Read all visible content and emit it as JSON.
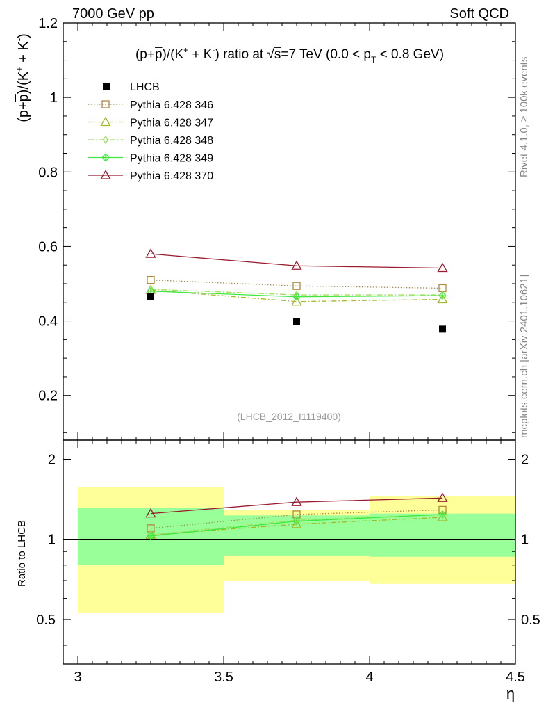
{
  "header": {
    "left": "7000 GeV pp",
    "right": "Soft QCD"
  },
  "side_labels": {
    "rivet": "Rivet 4.1.0, ≥ 100k events",
    "mcplots": "mcplots.cern.ch [arXiv:2401.10621]"
  },
  "watermark": "(LHCB_2012_I1119400)",
  "chart_data": {
    "type": "line",
    "title": "(p+p̄)/(K⁺ + K⁻) ratio at √s=7 TeV (0.0 < pT < 0.8 GeV)",
    "title_parts": {
      "pre": "(p+",
      "pbar": "p",
      "mid1": ")/(K",
      "plus": "+",
      "mid2": " + K",
      "minus": "-",
      "mid3": ") ratio at ",
      "sqrt": "√",
      "s": "s",
      "mid4": "=7 TeV (0.0 < p",
      "T": "T",
      "post": " < 0.8 GeV)"
    },
    "ylabel": "(p+p̄)/(K⁺ + K⁻)",
    "ylabel_parts": {
      "pre": "(p+",
      "pbar": "p",
      "mid1": ")/(K",
      "plus": "+",
      "mid2": " + K",
      "minus": "-",
      "post": ")"
    },
    "xlabel": "η",
    "ratio_ylabel": "Ratio to LHCB",
    "xlim": [
      2.95,
      4.5
    ],
    "ylim": [
      0.08,
      1.2
    ],
    "ratio_ylim": [
      0.34,
      2.36
    ],
    "x_ticks": [
      3,
      3.5,
      4,
      4.5
    ],
    "x_tick_labels": [
      "3",
      "3.5",
      "4",
      "4.5"
    ],
    "y_ticks": [
      0.2,
      0.4,
      0.6,
      0.8,
      1,
      1.2
    ],
    "y_tick_labels": [
      "0.2",
      "0.4",
      "0.6",
      "0.8",
      "1",
      "1.2"
    ],
    "ratio_ticks": [
      0.5,
      1,
      2
    ],
    "ratio_tick_labels": [
      "0.5",
      "1",
      "2"
    ],
    "x": [
      3.25,
      3.75,
      4.25
    ],
    "bins": [
      [
        3.0,
        3.5
      ],
      [
        3.5,
        4.0
      ],
      [
        4.0,
        4.5
      ]
    ],
    "data": {
      "name": "LHCB",
      "values": [
        0.465,
        0.398,
        0.378
      ],
      "band_inner": [
        [
          0.8,
          1.31
        ],
        [
          0.87,
          1.23
        ],
        [
          0.86,
          1.25
        ]
      ],
      "band_outer": [
        [
          0.53,
          1.57
        ],
        [
          0.7,
          1.29
        ],
        [
          0.68,
          1.45
        ]
      ]
    },
    "series": [
      {
        "name": "Pythia 6.428 346",
        "color": "#b08a3e",
        "marker": "square",
        "dash": "1.5,2.5",
        "values": [
          0.51,
          0.494,
          0.488
        ],
        "ratio": [
          1.1,
          1.24,
          1.29
        ]
      },
      {
        "name": "Pythia 6.428 347",
        "color": "#a2b82a",
        "marker": "triangle",
        "dash": "7,3,1.5,3",
        "values": [
          0.483,
          0.452,
          0.458
        ],
        "ratio": [
          1.04,
          1.14,
          1.21
        ]
      },
      {
        "name": "Pythia 6.428 348",
        "color": "#9ee05a",
        "marker": "diamond",
        "dash": "8,3,1.5,3",
        "values": [
          0.485,
          0.47,
          0.47
        ],
        "ratio": [
          1.04,
          1.18,
          1.24
        ]
      },
      {
        "name": "Pythia 6.428 349",
        "color": "#3ee83e",
        "marker": "circleplus",
        "dash": "",
        "values": [
          0.48,
          0.465,
          0.468
        ],
        "ratio": [
          1.03,
          1.17,
          1.24
        ]
      },
      {
        "name": "Pythia 6.428 370",
        "color": "#9a1a2e",
        "marker": "triangle",
        "dash": "",
        "values": [
          0.58,
          0.548,
          0.542
        ],
        "ratio": [
          1.25,
          1.38,
          1.43
        ]
      }
    ],
    "legend_position": "top-left"
  }
}
